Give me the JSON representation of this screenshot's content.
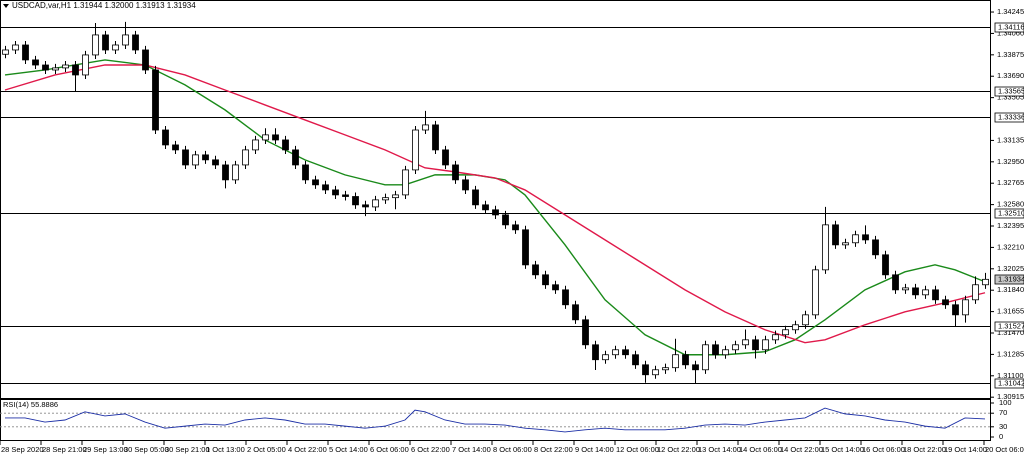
{
  "chart_data": [
    {
      "type": "candlestick",
      "header": "USDCAD,var,H1  1.31944 1.32000 1.31913 1.31934",
      "xlim": [
        -0.5,
        98.5
      ],
      "ylim": [
        1.30908,
        1.34349
      ],
      "yticks": [
        1.34245,
        {
          "value": 1.3406,
          "label": "1.34060"
        },
        1.33875,
        {
          "value": 1.3369,
          "label": "1.33690"
        },
        1.33505,
        1.33135,
        {
          "value": 1.3295,
          "label": "1.32950"
        },
        1.32765,
        {
          "value": 1.3258,
          "label": "1.32580"
        },
        1.32395,
        {
          "value": 1.3221,
          "label": "1.32210"
        },
        1.32025,
        {
          "value": 1.3184,
          "label": "1.31840"
        },
        1.31655,
        {
          "value": 1.3147,
          "label": "1.31470"
        },
        1.31285,
        {
          "value": 1.311,
          "label": "1.31100"
        },
        1.30915
      ],
      "xticks": [
        {
          "value": -0.5,
          "label": "28 Sep 2020"
        },
        {
          "value": 3.6,
          "label": "28 Sep 21:00"
        },
        {
          "value": 7.7,
          "label": "29 Sep 13:00"
        },
        {
          "value": 11.8,
          "label": "30 Sep 05:00"
        },
        {
          "value": 15.9,
          "label": "30 Sep 21:00"
        },
        {
          "value": 20,
          "label": "1 Oct 13:00"
        },
        {
          "value": 24.1,
          "label": "2 Oct 05:00"
        },
        {
          "value": 28.2,
          "label": "4 Oct 22:00"
        },
        {
          "value": 32.3,
          "label": "5 Oct 14:00"
        },
        {
          "value": 36.4,
          "label": "6 Oct 06:00"
        },
        {
          "value": 40.5,
          "label": "6 Oct 22:00"
        },
        {
          "value": 44.6,
          "label": "7 Oct 14:00"
        },
        {
          "value": 48.7,
          "label": "8 Oct 06:00"
        },
        {
          "value": 52.8,
          "label": "8 Oct 22:00"
        },
        {
          "value": 56.9,
          "label": "9 Oct 14:00"
        },
        {
          "value": 61,
          "label": "12 Oct 06:00"
        },
        {
          "value": 65.1,
          "label": "12 Oct 22:00"
        },
        {
          "value": 69.2,
          "label": "13 Oct 14:00"
        },
        {
          "value": 73.3,
          "label": "14 Oct 06:00"
        },
        {
          "value": 77.4,
          "label": "14 Oct 22:00"
        },
        {
          "value": 81.5,
          "label": "15 Oct 14:00"
        },
        {
          "value": 85.6,
          "label": "16 Oct 06:00"
        },
        {
          "value": 89.7,
          "label": "18 Oct 22:00"
        },
        {
          "value": 93.8,
          "label": "19 Oct 14:00"
        },
        {
          "value": 97.9,
          "label": "20 Oct 06:00"
        }
      ],
      "levels": [
        1.34116,
        1.33565,
        1.33336,
        {
          "value": 1.3251,
          "label": "1.32510"
        },
        1.31527,
        1.31042
      ],
      "level_color": "#000000",
      "bull_color": "#ffffff",
      "bear_color": "#000000",
      "candles": [
        [
          1.3388,
          1.33952,
          1.33845,
          1.33917
        ],
        [
          1.33917,
          1.33995,
          1.33882,
          1.3396
        ],
        [
          1.3396,
          1.33995,
          1.33796,
          1.33831
        ],
        [
          1.33831,
          1.33866,
          1.33752,
          1.33787
        ],
        [
          1.33787,
          1.33822,
          1.33709,
          1.33744
        ],
        [
          1.33744,
          1.33797,
          1.33709,
          1.33762
        ],
        [
          1.33762,
          1.33822,
          1.33727,
          1.33787
        ],
        [
          1.33787,
          1.33822,
          1.3356,
          1.33701
        ],
        [
          1.33701,
          1.33909,
          1.33666,
          1.33874
        ],
        [
          1.33874,
          1.3415,
          1.33839,
          1.34047
        ],
        [
          1.34047,
          1.34082,
          1.33882,
          1.33917
        ],
        [
          1.33917,
          1.33995,
          1.33882,
          1.3396
        ],
        [
          1.3396,
          1.3416,
          1.33925,
          1.34047
        ],
        [
          1.34047,
          1.34082,
          1.33882,
          1.33917
        ],
        [
          1.33917,
          1.33952,
          1.33709,
          1.33744
        ],
        [
          1.33744,
          1.33779,
          1.3319,
          1.33225
        ],
        [
          1.33225,
          1.3326,
          1.33061,
          1.33096
        ],
        [
          1.33096,
          1.33131,
          1.33018,
          1.33053
        ],
        [
          1.33053,
          1.33088,
          1.32888,
          1.32923
        ],
        [
          1.32923,
          1.33045,
          1.32888,
          1.3301
        ],
        [
          1.3301,
          1.33045,
          1.32932,
          1.32967
        ],
        [
          1.32967,
          1.33002,
          1.32888,
          1.32923
        ],
        [
          1.32923,
          1.32958,
          1.3272,
          1.32794
        ],
        [
          1.32794,
          1.32958,
          1.32759,
          1.32923
        ],
        [
          1.32923,
          1.33088,
          1.32888,
          1.33053
        ],
        [
          1.33053,
          1.33174,
          1.33018,
          1.33139
        ],
        [
          1.33139,
          1.3324,
          1.33104,
          1.33183
        ],
        [
          1.33183,
          1.3324,
          1.33104,
          1.33139
        ],
        [
          1.33139,
          1.33174,
          1.33018,
          1.33053
        ],
        [
          1.33053,
          1.33088,
          1.32888,
          1.32923
        ],
        [
          1.32923,
          1.32958,
          1.32759,
          1.32794
        ],
        [
          1.32794,
          1.32829,
          1.32716,
          1.32751
        ],
        [
          1.32751,
          1.32786,
          1.32672,
          1.32707
        ],
        [
          1.32707,
          1.32742,
          1.32629,
          1.32664
        ],
        [
          1.32664,
          1.32699,
          1.32615,
          1.3265
        ],
        [
          1.3265,
          1.32685,
          1.32543,
          1.32578
        ],
        [
          1.32578,
          1.32613,
          1.3248,
          1.3256
        ],
        [
          1.3256,
          1.32656,
          1.32525,
          1.32621
        ],
        [
          1.32621,
          1.32675,
          1.32586,
          1.3264
        ],
        [
          1.3264,
          1.32699,
          1.3254,
          1.32664
        ],
        [
          1.32664,
          1.32915,
          1.32629,
          1.3288
        ],
        [
          1.3288,
          1.3326,
          1.32845,
          1.33225
        ],
        [
          1.33225,
          1.3339,
          1.3319,
          1.33269
        ],
        [
          1.33269,
          1.33304,
          1.33018,
          1.33053
        ],
        [
          1.33053,
          1.33088,
          1.32888,
          1.32923
        ],
        [
          1.32923,
          1.32958,
          1.32759,
          1.32794
        ],
        [
          1.32794,
          1.32829,
          1.32672,
          1.32707
        ],
        [
          1.32707,
          1.32742,
          1.32543,
          1.32578
        ],
        [
          1.32578,
          1.32613,
          1.325,
          1.32535
        ],
        [
          1.32535,
          1.3257,
          1.32456,
          1.32491
        ],
        [
          1.32491,
          1.32526,
          1.3237,
          1.32405
        ],
        [
          1.32405,
          1.3244,
          1.32327,
          1.32362
        ],
        [
          1.32362,
          1.32397,
          1.32024,
          1.32059
        ],
        [
          1.32059,
          1.32094,
          1.31938,
          1.31973
        ],
        [
          1.31973,
          1.32008,
          1.31852,
          1.31887
        ],
        [
          1.31887,
          1.31922,
          1.31808,
          1.31843
        ],
        [
          1.31843,
          1.31878,
          1.31679,
          1.31714
        ],
        [
          1.31714,
          1.31749,
          1.31549,
          1.31584
        ],
        [
          1.31584,
          1.31619,
          1.31333,
          1.31368
        ],
        [
          1.31368,
          1.31403,
          1.3115,
          1.31239
        ],
        [
          1.31239,
          1.31317,
          1.31204,
          1.31282
        ],
        [
          1.31282,
          1.3136,
          1.31247,
          1.31325
        ],
        [
          1.31325,
          1.3136,
          1.31247,
          1.31282
        ],
        [
          1.31282,
          1.31317,
          1.3116,
          1.31195
        ],
        [
          1.31195,
          1.3123,
          1.3104,
          1.31109
        ],
        [
          1.31109,
          1.31187,
          1.31074,
          1.31152
        ],
        [
          1.31152,
          1.31205,
          1.31117,
          1.3117
        ],
        [
          1.3117,
          1.3142,
          1.31135,
          1.31282
        ],
        [
          1.31282,
          1.31317,
          1.3116,
          1.31195
        ],
        [
          1.31195,
          1.3123,
          1.3103,
          1.31152
        ],
        [
          1.31152,
          1.31403,
          1.31117,
          1.31368
        ],
        [
          1.31368,
          1.31403,
          1.31247,
          1.31282
        ],
        [
          1.31282,
          1.3136,
          1.31247,
          1.31325
        ],
        [
          1.31325,
          1.31403,
          1.3129,
          1.31368
        ],
        [
          1.31368,
          1.315,
          1.31333,
          1.31411
        ],
        [
          1.31411,
          1.31446,
          1.3125,
          1.31325
        ],
        [
          1.31325,
          1.31446,
          1.3129,
          1.31411
        ],
        [
          1.31411,
          1.3149,
          1.31376,
          1.31455
        ],
        [
          1.31455,
          1.31533,
          1.3142,
          1.31498
        ],
        [
          1.31498,
          1.31576,
          1.31463,
          1.31541
        ],
        [
          1.31541,
          1.31662,
          1.31506,
          1.31627
        ],
        [
          1.31627,
          1.32051,
          1.31592,
          1.32016
        ],
        [
          1.32016,
          1.3256,
          1.31981,
          1.32405
        ],
        [
          1.32405,
          1.3244,
          1.32197,
          1.32232
        ],
        [
          1.32232,
          1.32285,
          1.32197,
          1.3225
        ],
        [
          1.3225,
          1.32354,
          1.32215,
          1.32319
        ],
        [
          1.32319,
          1.324,
          1.3224,
          1.32275
        ],
        [
          1.32275,
          1.3231,
          1.32111,
          1.32146
        ],
        [
          1.32146,
          1.32181,
          1.31938,
          1.31973
        ],
        [
          1.31973,
          1.32008,
          1.31808,
          1.31843
        ],
        [
          1.31843,
          1.31895,
          1.31808,
          1.3186
        ],
        [
          1.3186,
          1.31895,
          1.31765,
          1.318
        ],
        [
          1.318,
          1.31878,
          1.31765,
          1.31843
        ],
        [
          1.31843,
          1.31878,
          1.31722,
          1.31757
        ],
        [
          1.31757,
          1.31792,
          1.31679,
          1.31714
        ],
        [
          1.31714,
          1.31749,
          1.3153,
          1.31627
        ],
        [
          1.31627,
          1.31792,
          1.3156,
          1.31757
        ],
        [
          1.31757,
          1.3196,
          1.31722,
          1.31887
        ],
        [
          1.31887,
          1.3199,
          1.31852,
          1.31934
        ]
      ],
      "ma": [
        {
          "color": "#1a8a1a",
          "x": [
            0,
            4,
            10,
            14,
            18,
            22,
            26,
            30,
            34,
            38,
            40,
            43,
            47,
            50,
            52,
            56,
            60,
            64,
            68,
            72,
            76,
            79,
            82,
            86,
            90,
            93,
            95,
            98
          ],
          "values": [
            1.33701,
            1.33744,
            1.33831,
            1.33787,
            1.33615,
            1.33399,
            1.33139,
            1.32967,
            1.32837,
            1.32751,
            1.32751,
            1.32837,
            1.32837,
            1.32794,
            1.32664,
            1.32232,
            1.31757,
            1.31455,
            1.31282,
            1.31282,
            1.31308,
            1.31411,
            1.31584,
            1.31843,
            1.31999,
            1.32059,
            1.32016,
            1.31913
          ]
        },
        {
          "color": "#e0194a",
          "x": [
            0,
            5,
            10,
            14,
            18,
            22,
            26,
            30,
            34,
            38,
            42,
            45,
            49,
            52,
            56,
            60,
            64,
            68,
            72,
            76,
            80,
            82,
            86,
            90,
            94,
            98
          ],
          "values": [
            1.33571,
            1.33701,
            1.33787,
            1.33787,
            1.33701,
            1.33571,
            1.33442,
            1.33312,
            1.33183,
            1.33053,
            1.32898,
            1.32863,
            1.32811,
            1.32707,
            1.32491,
            1.32275,
            1.32059,
            1.31843,
            1.31653,
            1.31498,
            1.31386,
            1.31411,
            1.31541,
            1.31653,
            1.31731,
            1.31818
          ]
        }
      ]
    },
    {
      "type": "line",
      "title": "RSI(14) 55.8886",
      "xlim": [
        -0.5,
        98.5
      ],
      "ylim": [
        0,
        100
      ],
      "yticks": [
        100,
        70,
        30,
        0
      ],
      "levels": [
        70,
        30
      ],
      "color": "#1c2fa6",
      "x": [
        0,
        2,
        4,
        6,
        8,
        10,
        12,
        14,
        16,
        18,
        20,
        22,
        24,
        26,
        28,
        30,
        32,
        34,
        36,
        38,
        40,
        41,
        42,
        44,
        46,
        48,
        50,
        52,
        54,
        56,
        58,
        60,
        62,
        64,
        66,
        68,
        70,
        72,
        74,
        76,
        78,
        80,
        82,
        84,
        86,
        88,
        90,
        92,
        94,
        96,
        98
      ],
      "values": [
        56,
        56,
        44,
        50,
        74,
        62,
        68,
        44,
        26,
        32,
        38,
        35,
        50,
        56,
        50,
        38,
        38,
        32,
        26,
        32,
        50,
        79,
        74,
        50,
        38,
        38,
        35,
        26,
        21,
        15,
        21,
        26,
        21,
        21,
        21,
        26,
        35,
        38,
        35,
        44,
        50,
        56,
        85,
        68,
        62,
        50,
        44,
        32,
        26,
        56,
        53
      ]
    }
  ]
}
